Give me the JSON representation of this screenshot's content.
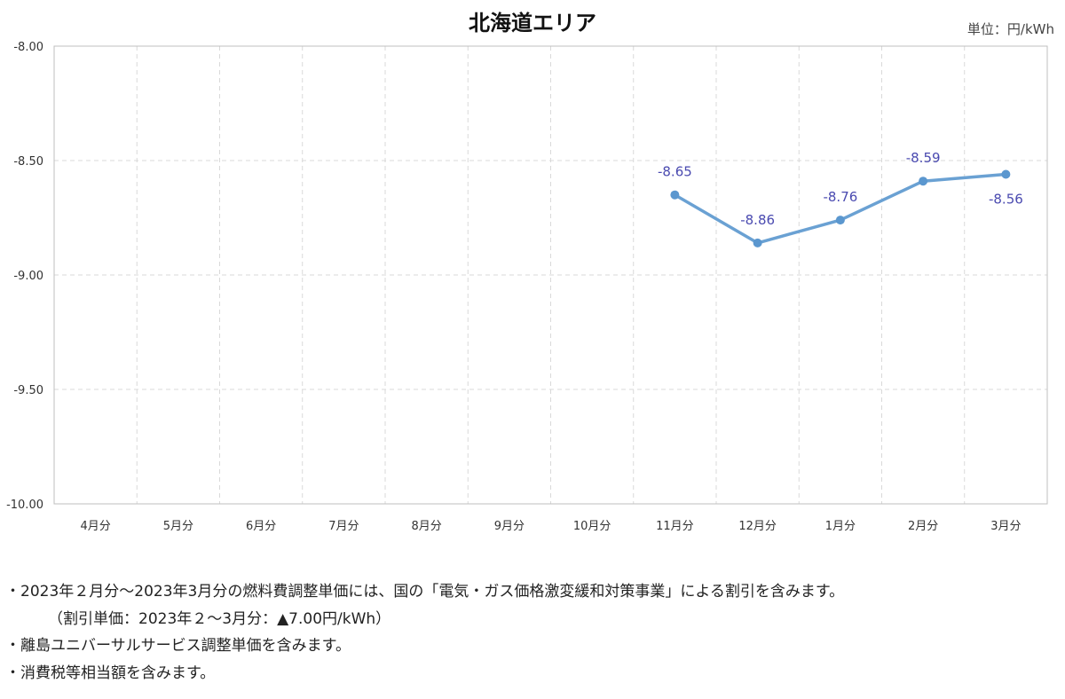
{
  "chart_data": {
    "type": "line",
    "title": "北海道エリア",
    "unit": "単位：円/kWh",
    "categories": [
      "4月分",
      "5月分",
      "6月分",
      "7月分",
      "8月分",
      "9月分",
      "10月分",
      "11月分",
      "12月分",
      "1月分",
      "2月分",
      "3月分"
    ],
    "series": [
      {
        "values": [
          null,
          null,
          null,
          null,
          null,
          null,
          null,
          -8.65,
          -8.86,
          -8.76,
          -8.59,
          -8.56
        ],
        "labels": [
          "",
          "",
          "",
          "",
          "",
          "",
          "",
          "-8.65",
          "-8.86",
          "-8.76",
          "-8.59",
          "-8.56"
        ]
      }
    ],
    "y_ticks": [
      "-8.00",
      "-8.50",
      "-9.00",
      "-9.50",
      "-10.00"
    ],
    "y_tick_values": [
      -8.0,
      -8.5,
      -9.0,
      -9.5,
      -10.0
    ],
    "ylim": [
      -10.0,
      -8.0
    ],
    "grid": true,
    "colors": {
      "line": "#6aa1d3",
      "marker": "#5b97cf",
      "data_label": "#4a4ab0",
      "grid": "#d9d9d9",
      "axis": "#bfbfbf"
    }
  },
  "notes": [
    "・2023年２月分～2023年3月分の燃料費調整単価には、国の「電気・ガス価格激変緩和対策事業」による割引を含みます。",
    "（割引単価：2023年２～3月分：▲7.00円/kWh）",
    "・離島ユニバーサルサービス調整単価を含みます。",
    "・消費税等相当額を含みます。"
  ]
}
